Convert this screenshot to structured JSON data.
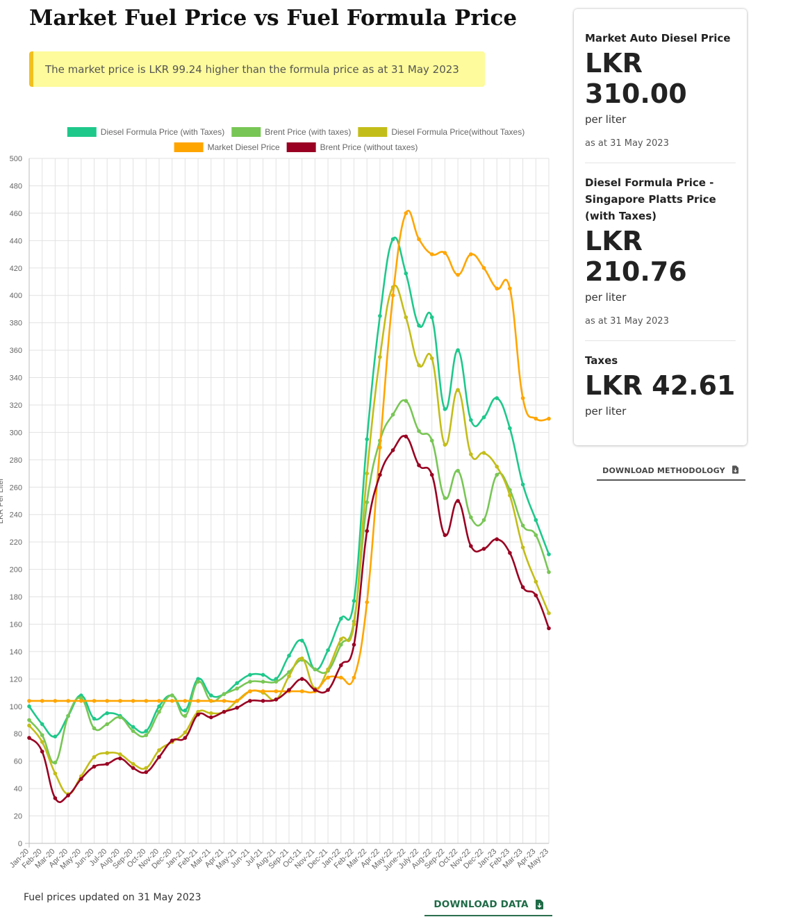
{
  "page": {
    "title": "Market Fuel Price vs Fuel Formula Price",
    "alert": "The market price is LKR 99.24 higher than the formula price as at 31 May 2023",
    "updated": "Fuel prices updated on 31 May 2023",
    "download_data": "DOWNLOAD DATA",
    "download_methodology": "DOWNLOAD METHODOLOGY"
  },
  "card": {
    "market": {
      "label": "Market Auto Diesel Price",
      "currency": "LKR",
      "value": "310.00",
      "unit": "per liter",
      "date": "as at 31 May 2023"
    },
    "formula": {
      "label": "Diesel Formula Price - Singapore Platts Price (with Taxes)",
      "currency": "LKR",
      "value": "210.76",
      "unit": "per liter",
      "date": "as at 31 May 2023"
    },
    "taxes": {
      "label": "Taxes",
      "value": "LKR 42.61",
      "unit": "per liter"
    }
  },
  "colors": {
    "accent": "#1f6b47",
    "alert_bg": "#fdfb9b",
    "alert_border": "#f2c01e"
  },
  "chart_data": {
    "type": "line",
    "ylabel": "LKR Per Liter",
    "xlabel": "",
    "ylim": [
      0,
      500
    ],
    "ytick_step": 20,
    "grid": true,
    "legend_position": "top",
    "categories": [
      "Jan-20",
      "Feb-20",
      "Mar-20",
      "Apr-20",
      "May-20",
      "Jun-20",
      "Jul-20",
      "Aug-20",
      "Sep-20",
      "Oct-20",
      "Nov-20",
      "Dec-20",
      "Jan-21",
      "Feb-21",
      "Mar-21",
      "Apr-21",
      "May-21",
      "Jun-21",
      "Jul-21",
      "Aug-21",
      "Sep-21",
      "Oct-21",
      "Nov-21",
      "Dec-21",
      "Jan-22",
      "Feb-22",
      "Mar-22",
      "Apr-22",
      "May-22",
      "June-22",
      "July-22",
      "Aug-22",
      "Sep-22",
      "Oct-22",
      "Nov-22",
      "Dec-22",
      "Jan-23",
      "Feb-23",
      "Mar-23",
      "Apr-23",
      "May-23"
    ],
    "series": [
      {
        "name": "Diesel Formula Price (with Taxes)",
        "color": "#1ec88b",
        "values": [
          100,
          87,
          78,
          93,
          108,
          91,
          95,
          93,
          85,
          82,
          100,
          108,
          97,
          120,
          108,
          109,
          117,
          123,
          123,
          120,
          137,
          148,
          127,
          141,
          164,
          177,
          295,
          385,
          441,
          416,
          378,
          384,
          317,
          360,
          309,
          311,
          325,
          303,
          262,
          236,
          211
        ]
      },
      {
        "name": "Brent Price (with taxes)",
        "color": "#78c655",
        "values": [
          90,
          79,
          59,
          93,
          106,
          84,
          87,
          92,
          82,
          79,
          96,
          108,
          93,
          118,
          104,
          109,
          113,
          118,
          118,
          118,
          125,
          134,
          127,
          126,
          145,
          162,
          249,
          294,
          313,
          323,
          301,
          294,
          252,
          272,
          238,
          236,
          269,
          258,
          232,
          225,
          198
        ]
      },
      {
        "name": "Diesel Formula Price(without Taxes)",
        "color": "#c3bd19",
        "values": [
          86,
          74,
          51,
          36,
          49,
          63,
          66,
          65,
          58,
          55,
          68,
          74,
          81,
          96,
          95,
          96,
          104,
          111,
          110,
          105,
          122,
          135,
          113,
          127,
          149,
          160,
          270,
          355,
          406,
          384,
          349,
          354,
          291,
          331,
          284,
          285,
          275,
          254,
          216,
          191,
          168
        ]
      },
      {
        "name": "Market Diesel Price",
        "color": "#ffa500",
        "values": [
          104,
          104,
          104,
          104,
          104,
          104,
          104,
          104,
          104,
          104,
          104,
          104,
          104,
          104,
          104,
          104,
          104,
          111,
          111,
          111,
          111,
          111,
          111,
          121,
          121,
          121,
          176,
          289,
          400,
          460,
          441,
          430,
          431,
          415,
          430,
          420,
          405,
          405,
          325,
          310,
          310
        ]
      },
      {
        "name": "Brent Price (without taxes)",
        "color": "#990022",
        "values": [
          77,
          67,
          33,
          35,
          47,
          56,
          58,
          62,
          55,
          52,
          63,
          75,
          77,
          94,
          92,
          96,
          99,
          104,
          104,
          105,
          112,
          120,
          112,
          112,
          130,
          145,
          228,
          269,
          287,
          297,
          276,
          269,
          225,
          250,
          217,
          215,
          222,
          212,
          187,
          181,
          157
        ]
      }
    ]
  }
}
